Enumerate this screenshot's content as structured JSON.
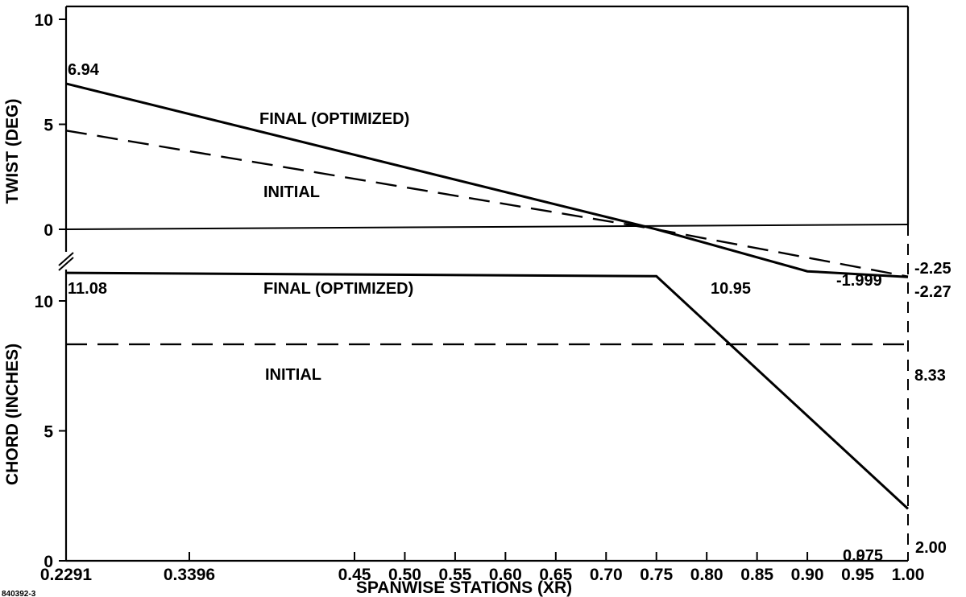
{
  "figure_id": "840392-3",
  "x_axis": {
    "label": "SPANWISE STATIONS (XR)",
    "ticks": [
      {
        "value": 0.2291,
        "label": "0.2291"
      },
      {
        "value": 0.3396,
        "label": "0.3396"
      },
      {
        "value": 0.45,
        "label": "0.45"
      },
      {
        "value": 0.5,
        "label": "0.50"
      },
      {
        "value": 0.55,
        "label": "0.55"
      },
      {
        "value": 0.6,
        "label": "0.60"
      },
      {
        "value": 0.65,
        "label": "0.65"
      },
      {
        "value": 0.7,
        "label": "0.70"
      },
      {
        "value": 0.75,
        "label": "0.75"
      },
      {
        "value": 0.8,
        "label": "0.80"
      },
      {
        "value": 0.85,
        "label": "0.85"
      },
      {
        "value": 0.9,
        "label": "0.90"
      },
      {
        "value": 0.95,
        "label": "0.95"
      },
      {
        "value": 1.0,
        "label": "1.00"
      }
    ]
  },
  "colors": {
    "ink": "#000000",
    "background": "#ffffff"
  },
  "chart_data": [
    {
      "type": "line",
      "panel": "top",
      "ylabel": "TWIST (DEG)",
      "ylim": [
        0,
        10
      ],
      "yticks": [
        {
          "value": 0,
          "label": "0"
        },
        {
          "value": 5,
          "label": "5"
        },
        {
          "value": 10,
          "label": "10"
        }
      ],
      "axis_break_below_zero": true,
      "series": [
        {
          "name": "FINAL (OPTIMIZED)",
          "style": "solid",
          "points": [
            {
              "x": 0.2291,
              "y": 6.94
            },
            {
              "x": 0.75,
              "y": 0.0
            },
            {
              "x": 0.9,
              "y": -1.999
            },
            {
              "x": 1.0,
              "y": -2.27
            }
          ]
        },
        {
          "name": "INITIAL",
          "style": "dashed",
          "points": [
            {
              "x": 0.2291,
              "y": 4.7
            },
            {
              "x": 0.75,
              "y": 0.0
            },
            {
              "x": 1.0,
              "y": -2.25
            }
          ]
        }
      ],
      "annotations": [
        {
          "text": "6.94",
          "x": 0.2291,
          "y": 6.94
        },
        {
          "text": "-1.999",
          "x": 0.9,
          "y": -1.999
        },
        {
          "text": "-2.25",
          "x": 1.0,
          "y": -2.25
        },
        {
          "text": "-2.27",
          "x": 1.0,
          "y": -2.27
        }
      ]
    },
    {
      "type": "line",
      "panel": "bottom",
      "ylabel": "CHORD (INCHES)",
      "ylim": [
        0,
        11.9
      ],
      "yticks": [
        {
          "value": 0,
          "label": "0"
        },
        {
          "value": 5,
          "label": "5"
        },
        {
          "value": 10,
          "label": "10"
        }
      ],
      "series": [
        {
          "name": "FINAL (OPTIMIZED)",
          "style": "solid",
          "points": [
            {
              "x": 0.2291,
              "y": 11.08
            },
            {
              "x": 0.75,
              "y": 10.95
            },
            {
              "x": 1.0,
              "y": 2.0
            }
          ]
        },
        {
          "name": "INITIAL",
          "style": "dashed",
          "points": [
            {
              "x": 0.2291,
              "y": 8.33
            },
            {
              "x": 1.0,
              "y": 8.33
            }
          ]
        }
      ],
      "annotations": [
        {
          "text": "11.08",
          "x": 0.2291,
          "y": 11.08
        },
        {
          "text": "10.95",
          "x": 0.75,
          "y": 10.95
        },
        {
          "text": "8.33",
          "x": 1.0,
          "y": 8.33
        },
        {
          "text": "2.00",
          "x": 1.0,
          "y": 2.0
        },
        {
          "text": "0.975",
          "x": 0.975,
          "y": 2.0
        }
      ]
    }
  ]
}
